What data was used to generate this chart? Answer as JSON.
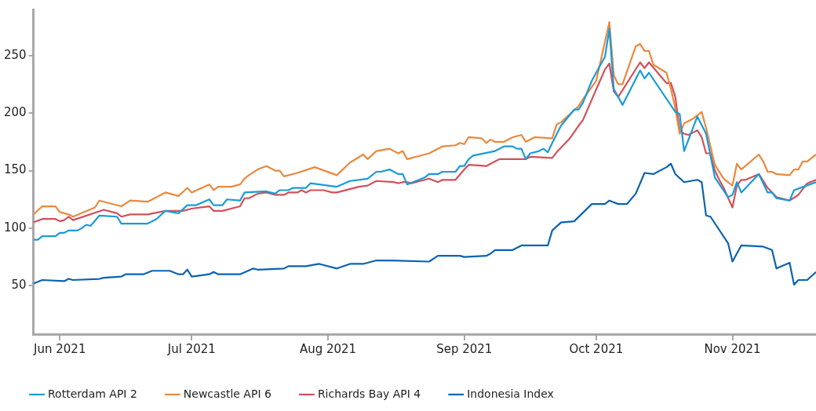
{
  "chart_data": {
    "type": "line",
    "xlim": [
      "2021-05-26",
      "2021-11-20"
    ],
    "xticks": [
      {
        "value": "2021-06-01",
        "label": "Jun 2021"
      },
      {
        "value": "2021-07-01",
        "label": "Jul 2021"
      },
      {
        "value": "2021-08-01",
        "label": "Aug 2021"
      },
      {
        "value": "2021-09-01",
        "label": "Sep 2021"
      },
      {
        "value": "2021-10-01",
        "label": "Oct 2021"
      },
      {
        "value": "2021-11-01",
        "label": "Nov 2021"
      }
    ],
    "ylim": [
      8,
      290
    ],
    "yticks": [
      50,
      100,
      150,
      200,
      250
    ],
    "grid": false,
    "legend": "bottom left",
    "marker": "none",
    "line_style": "solid",
    "series": [
      {
        "name": "Rotterdam API 2",
        "color": "#1a9bd7",
        "x": [
          "2021-05-26",
          "2021-05-27",
          "2021-05-28",
          "2021-05-31",
          "2021-06-01",
          "2021-06-02",
          "2021-06-03",
          "2021-06-05",
          "2021-06-06",
          "2021-06-07",
          "2021-06-08",
          "2021-06-10",
          "2021-06-14",
          "2021-06-15",
          "2021-06-21",
          "2021-06-23",
          "2021-06-25",
          "2021-06-28",
          "2021-06-30",
          "2021-07-02",
          "2021-07-05",
          "2021-07-06",
          "2021-07-08",
          "2021-07-09",
          "2021-07-12",
          "2021-07-13",
          "2021-07-18",
          "2021-07-20",
          "2021-07-21",
          "2021-07-23",
          "2021-07-24",
          "2021-07-27",
          "2021-07-28",
          "2021-08-03",
          "2021-08-06",
          "2021-08-10",
          "2021-08-12",
          "2021-08-13",
          "2021-08-15",
          "2021-08-17",
          "2021-08-18",
          "2021-08-19",
          "2021-08-23",
          "2021-08-24",
          "2021-08-26",
          "2021-08-27",
          "2021-08-30",
          "2021-08-31",
          "2021-09-01",
          "2021-09-02",
          "2021-09-03",
          "2021-09-08",
          "2021-09-10",
          "2021-09-12",
          "2021-09-13",
          "2021-09-14",
          "2021-09-15",
          "2021-09-16",
          "2021-09-18",
          "2021-09-19",
          "2021-09-20",
          "2021-09-21",
          "2021-09-23",
          "2021-09-26",
          "2021-09-27",
          "2021-09-28",
          "2021-09-30",
          "2021-10-03",
          "2021-10-04",
          "2021-10-05",
          "2021-10-07",
          "2021-10-11",
          "2021-10-12",
          "2021-10-13",
          "2021-10-19",
          "2021-10-20",
          "2021-10-21",
          "2021-10-24",
          "2021-10-26",
          "2021-10-28",
          "2021-10-31",
          "2021-11-01",
          "2021-11-02",
          "2021-11-03",
          "2021-11-07",
          "2021-11-09",
          "2021-11-10",
          "2021-11-11",
          "2021-11-14",
          "2021-11-15",
          "2021-11-20"
        ],
        "values": [
          90,
          90,
          93,
          93,
          96,
          96,
          98,
          98,
          100,
          103,
          102,
          111,
          110,
          104,
          104,
          108,
          115,
          113,
          120,
          120,
          125,
          120,
          120,
          125,
          124,
          131,
          132,
          130,
          133,
          133,
          135,
          135,
          139,
          136,
          141,
          143,
          149,
          149,
          151,
          147,
          147,
          138,
          144,
          147,
          147,
          149,
          149,
          154,
          154,
          160,
          163,
          167,
          171,
          171,
          169,
          169,
          160,
          165,
          167,
          169,
          166,
          174,
          189,
          203,
          203,
          209,
          228,
          249,
          273,
          221,
          207,
          237,
          230,
          235,
          201,
          199,
          167,
          197,
          182,
          144,
          127,
          129,
          140,
          131,
          147,
          131,
          131,
          126,
          124,
          133,
          140
        ]
      },
      {
        "name": "Newcastle API 6",
        "color": "#e8893f",
        "x": [
          "2021-05-26",
          "2021-05-28",
          "2021-05-31",
          "2021-06-01",
          "2021-06-03",
          "2021-06-04",
          "2021-06-09",
          "2021-06-10",
          "2021-06-15",
          "2021-06-17",
          "2021-06-21",
          "2021-06-25",
          "2021-06-28",
          "2021-06-30",
          "2021-07-01",
          "2021-07-05",
          "2021-07-06",
          "2021-07-07",
          "2021-07-10",
          "2021-07-12",
          "2021-07-13",
          "2021-07-14",
          "2021-07-16",
          "2021-07-18",
          "2021-07-20",
          "2021-07-21",
          "2021-07-22",
          "2021-07-25",
          "2021-07-29",
          "2021-08-03",
          "2021-08-06",
          "2021-08-09",
          "2021-08-10",
          "2021-08-12",
          "2021-08-15",
          "2021-08-17",
          "2021-08-18",
          "2021-08-19",
          "2021-08-22",
          "2021-08-24",
          "2021-08-27",
          "2021-08-30",
          "2021-08-31",
          "2021-09-01",
          "2021-09-02",
          "2021-09-05",
          "2021-09-06",
          "2021-09-07",
          "2021-09-08",
          "2021-09-10",
          "2021-09-12",
          "2021-09-14",
          "2021-09-15",
          "2021-09-17",
          "2021-09-21",
          "2021-09-22",
          "2021-09-23",
          "2021-09-27",
          "2021-09-28",
          "2021-10-01",
          "2021-10-04",
          "2021-10-05",
          "2021-10-06",
          "2021-10-07",
          "2021-10-10",
          "2021-10-11",
          "2021-10-12",
          "2021-10-13",
          "2021-10-14",
          "2021-10-17",
          "2021-10-18",
          "2021-10-19",
          "2021-10-20",
          "2021-10-21",
          "2021-10-23",
          "2021-10-25",
          "2021-10-26",
          "2021-10-28",
          "2021-10-30",
          "2021-11-01",
          "2021-11-02",
          "2021-11-03",
          "2021-11-07",
          "2021-11-08",
          "2021-11-09",
          "2021-11-10",
          "2021-11-11",
          "2021-11-14",
          "2021-11-15",
          "2021-11-16",
          "2021-11-17",
          "2021-11-18",
          "2021-11-20"
        ],
        "values": [
          112,
          119,
          119,
          114,
          112,
          110,
          118,
          124,
          119,
          124,
          123,
          131,
          128,
          135,
          131,
          138,
          133,
          136,
          136,
          138,
          143,
          146,
          151,
          154,
          150,
          150,
          145,
          148,
          153,
          146,
          157,
          164,
          160,
          167,
          169,
          165,
          167,
          160,
          163,
          165,
          171,
          172,
          174,
          173,
          179,
          178,
          174,
          177,
          175,
          175,
          179,
          181,
          175,
          179,
          178,
          190,
          192,
          206,
          212,
          228,
          279,
          233,
          225,
          225,
          258,
          260,
          254,
          254,
          242,
          235,
          221,
          204,
          182,
          191,
          195,
          201,
          187,
          155,
          143,
          137,
          156,
          151,
          164,
          158,
          149,
          149,
          147,
          146,
          151,
          151,
          158,
          158,
          164
        ]
      },
      {
        "name": "Richards Bay API 4",
        "color": "#d1505a",
        "x": [
          "2021-05-26",
          "2021-05-28",
          "2021-05-31",
          "2021-06-01",
          "2021-06-02",
          "2021-06-03",
          "2021-06-04",
          "2021-06-11",
          "2021-06-14",
          "2021-06-15",
          "2021-06-17",
          "2021-06-21",
          "2021-06-25",
          "2021-06-29",
          "2021-07-01",
          "2021-07-05",
          "2021-07-06",
          "2021-07-08",
          "2021-07-12",
          "2021-07-13",
          "2021-07-14",
          "2021-07-16",
          "2021-07-18",
          "2021-07-20",
          "2021-07-22",
          "2021-07-23",
          "2021-07-25",
          "2021-07-26",
          "2021-07-27",
          "2021-07-28",
          "2021-07-31",
          "2021-08-02",
          "2021-08-03",
          "2021-08-08",
          "2021-08-10",
          "2021-08-12",
          "2021-08-16",
          "2021-08-17",
          "2021-08-18",
          "2021-08-19",
          "2021-08-20",
          "2021-08-22",
          "2021-08-24",
          "2021-08-26",
          "2021-08-27",
          "2021-08-30",
          "2021-09-01",
          "2021-09-02",
          "2021-09-06",
          "2021-09-08",
          "2021-09-09",
          "2021-09-15",
          "2021-09-16",
          "2021-09-21",
          "2021-09-22",
          "2021-09-23",
          "2021-09-25",
          "2021-09-27",
          "2021-09-28",
          "2021-10-03",
          "2021-10-04",
          "2021-10-05",
          "2021-10-06",
          "2021-10-11",
          "2021-10-12",
          "2021-10-13",
          "2021-10-17",
          "2021-10-18",
          "2021-10-19",
          "2021-10-20",
          "2021-10-21",
          "2021-10-22",
          "2021-10-24",
          "2021-10-25",
          "2021-10-26",
          "2021-10-27",
          "2021-10-28",
          "2021-10-29",
          "2021-10-30",
          "2021-11-01",
          "2021-11-02",
          "2021-11-03",
          "2021-11-04",
          "2021-11-07",
          "2021-11-09",
          "2021-11-11",
          "2021-11-14",
          "2021-11-16",
          "2021-11-18",
          "2021-11-20"
        ],
        "values": [
          105,
          108,
          108,
          106,
          107,
          110,
          107,
          116,
          113,
          110,
          112,
          112,
          115,
          115,
          117,
          119,
          115,
          115,
          119,
          126,
          126,
          130,
          131,
          129,
          129,
          131,
          131,
          133,
          131,
          133,
          133,
          131,
          131,
          136,
          137,
          141,
          140,
          139,
          140,
          140,
          139,
          141,
          143,
          140,
          142,
          142,
          151,
          155,
          154,
          158,
          160,
          160,
          162,
          161,
          166,
          170,
          178,
          189,
          194,
          238,
          243,
          219,
          214,
          244,
          239,
          244,
          226,
          226,
          214,
          185,
          182,
          181,
          185,
          179,
          165,
          165,
          150,
          142,
          135,
          118,
          137,
          142,
          142,
          147,
          135,
          127,
          124,
          129,
          139,
          142
        ]
      },
      {
        "name": "Indonesia Index",
        "color": "#0b63b0",
        "x": [
          "2021-05-26",
          "2021-05-28",
          "2021-06-02",
          "2021-06-03",
          "2021-06-04",
          "2021-06-10",
          "2021-06-11",
          "2021-06-15",
          "2021-06-16",
          "2021-06-20",
          "2021-06-22",
          "2021-06-26",
          "2021-06-28",
          "2021-06-29",
          "2021-06-30",
          "2021-07-01",
          "2021-07-05",
          "2021-07-06",
          "2021-07-07",
          "2021-07-12",
          "2021-07-15",
          "2021-07-16",
          "2021-07-22",
          "2021-07-23",
          "2021-07-27",
          "2021-07-30",
          "2021-08-03",
          "2021-08-06",
          "2021-08-09",
          "2021-08-12",
          "2021-08-15",
          "2021-08-24",
          "2021-08-26",
          "2021-08-31",
          "2021-09-01",
          "2021-09-06",
          "2021-09-07",
          "2021-09-08",
          "2021-09-12",
          "2021-09-14",
          "2021-09-20",
          "2021-09-21",
          "2021-09-23",
          "2021-09-26",
          "2021-09-30",
          "2021-10-03",
          "2021-10-04",
          "2021-10-06",
          "2021-10-08",
          "2021-10-10",
          "2021-10-12",
          "2021-10-14",
          "2021-10-17",
          "2021-10-18",
          "2021-10-19",
          "2021-10-21",
          "2021-10-24",
          "2021-10-25",
          "2021-10-26",
          "2021-10-27",
          "2021-10-31",
          "2021-11-01",
          "2021-11-03",
          "2021-11-08",
          "2021-11-10",
          "2021-11-11",
          "2021-11-14",
          "2021-11-15",
          "2021-11-16",
          "2021-11-18",
          "2021-11-20"
        ],
        "values": [
          52,
          55,
          54,
          56,
          55,
          56,
          57,
          58,
          60,
          60,
          63,
          63,
          60,
          60,
          64,
          58,
          60,
          62,
          60,
          60,
          65,
          64,
          65,
          67,
          67,
          69,
          65,
          69,
          69,
          72,
          72,
          71,
          76,
          76,
          75,
          76,
          78,
          81,
          81,
          85,
          85,
          98,
          105,
          106,
          121,
          121,
          124,
          121,
          121,
          130,
          148,
          147,
          153,
          156,
          147,
          140,
          142,
          140,
          111,
          110,
          87,
          71,
          85,
          84,
          81,
          65,
          70,
          51,
          55,
          55,
          62
        ]
      }
    ]
  }
}
